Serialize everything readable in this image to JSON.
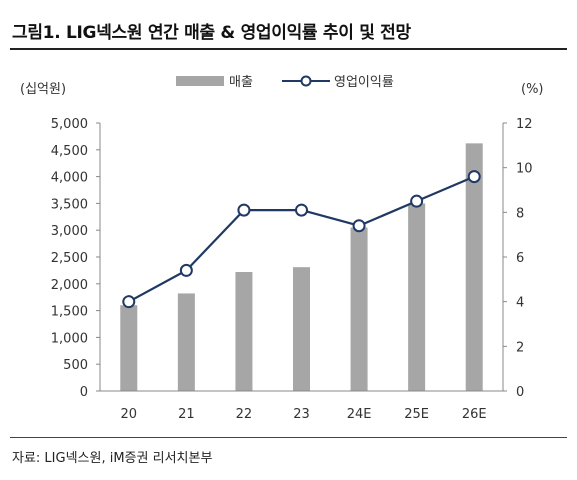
{
  "figure": {
    "title": "그림1.  LIG넥스원 연간 매출 & 영업이익률 추이 및 전망",
    "source": "자료: LIG넥스원, iM증권 리서치본부"
  },
  "chart_data": {
    "type": "bar",
    "categories": [
      "20",
      "21",
      "22",
      "23",
      "24E",
      "25E",
      "26E"
    ],
    "series": [
      {
        "name": "매출",
        "type": "bar",
        "axis": "left",
        "values": [
          1600,
          1820,
          2220,
          2310,
          3050,
          3500,
          4620
        ],
        "color": "#a6a6a6"
      },
      {
        "name": "영업이익률",
        "type": "line",
        "axis": "right",
        "values": [
          4.0,
          5.4,
          8.1,
          8.1,
          7.4,
          8.5,
          9.6
        ],
        "color": "#1f3864"
      }
    ],
    "left_axis": {
      "unit": "(십억원)",
      "ylim": [
        0,
        5000
      ],
      "ticks": [
        0,
        500,
        1000,
        1500,
        2000,
        2500,
        3000,
        3500,
        4000,
        4500,
        5000
      ],
      "tick_labels": [
        "0",
        "500",
        "1,000",
        "1,500",
        "2,000",
        "2,500",
        "3,000",
        "3,500",
        "4,000",
        "4,500",
        "5,000"
      ]
    },
    "right_axis": {
      "unit": "(%)",
      "ylim": [
        0,
        12
      ],
      "ticks": [
        0,
        2,
        4,
        6,
        8,
        10,
        12
      ],
      "tick_labels": [
        "0",
        "2",
        "4",
        "6",
        "8",
        "10",
        "12"
      ]
    },
    "legend": "top",
    "grid": false
  }
}
